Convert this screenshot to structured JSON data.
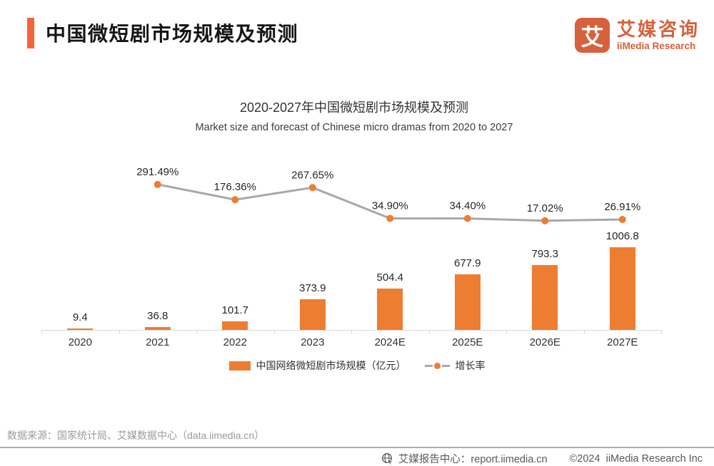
{
  "header": {
    "title": "中国微短剧市场规模及预测",
    "logo_glyph": "艾",
    "brand_cn": "艾媒咨询",
    "brand_en": "iiMedia Research"
  },
  "chart_data": {
    "type": "bar+line",
    "title": "2020-2027年中国微短剧市场规模及预测",
    "subtitle": "Market size and forecast of Chinese micro dramas from 2020 to 2027",
    "categories": [
      "2020",
      "2021",
      "2022",
      "2023",
      "2024E",
      "2025E",
      "2026E",
      "2027E"
    ],
    "series": [
      {
        "name": "中国网络微短剧市场规模（亿元）",
        "type": "bar",
        "values": [
          9.4,
          36.8,
          101.7,
          373.9,
          504.4,
          677.9,
          793.3,
          1006.8
        ],
        "labels": [
          "9.4",
          "36.8",
          "101.7",
          "373.9",
          "504.4",
          "677.9",
          "793.3",
          "1006.8"
        ],
        "color": "#ED7D31"
      },
      {
        "name": "增长率",
        "type": "line",
        "unit": "%",
        "values": [
          null,
          291.49,
          176.36,
          267.65,
          34.9,
          34.4,
          17.02,
          26.91
        ],
        "labels": [
          null,
          "291.49%",
          "176.36%",
          "267.65%",
          "34.90%",
          "34.40%",
          "17.02%",
          "26.91%"
        ],
        "line_color": "#A8A8A8",
        "marker_color": "#ED7D31"
      }
    ],
    "ylim": [
      0,
      2287
    ],
    "y2lim": [
      0,
      608
    ],
    "grid": false,
    "legend": {
      "position": "bottom",
      "bar_label": "中国网络微短剧市场规模（亿元）",
      "line_label": "增长率"
    }
  },
  "footer": {
    "source": "数据来源：国家统计局、艾媒数据中心（data.iimedia.cn）",
    "report_center": "艾媒报告中心：report.iimedia.cn",
    "copyright": "©2024  iiMedia Research Inc"
  },
  "colors": {
    "accent": "#F4653C",
    "brand": "#D7613B",
    "bar": "#ED7D31",
    "line": "#A8A8A8",
    "marker": "#ED7D31",
    "axis": "#D9D9D9"
  }
}
